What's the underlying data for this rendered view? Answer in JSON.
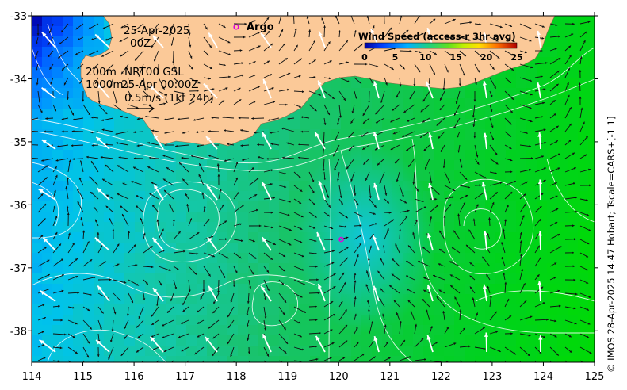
{
  "map": {
    "lon_range": [
      114,
      125
    ],
    "lat_range": [
      -38.5,
      -33
    ],
    "x_ticks": [
      "114",
      "115",
      "116",
      "117",
      "118",
      "119",
      "120",
      "121",
      "122",
      "123",
      "124",
      "125"
    ],
    "y_ticks": [
      "-33",
      "-34",
      "-35",
      "-36",
      "-37",
      "-38"
    ],
    "date_line1": "25-Apr-2025",
    "date_line2": "00Z",
    "depth_line1": "200m",
    "depth_line2": "1000m",
    "product_line1": "NRT00 GSL",
    "product_line2": "25-Apr 00:00Z",
    "scale_label": "0.5m/s (1kt 24h)",
    "argo_label": "Argo",
    "argo_float": {
      "lon": 120.05,
      "lat": -36.55
    },
    "credit": "© IMOS 28-Apr-2025 14:47 Hobart; Tscale=CARS+[-1 1]",
    "colors": {
      "land": "#fbc998",
      "vectors": "#111111",
      "contours": "#ffffff",
      "argo": "#e000e0"
    }
  },
  "colorbar": {
    "title": "Wind Speed (access-r 3hr avg)",
    "ticks": [
      "0",
      "5",
      "10",
      "15",
      "20",
      "25"
    ],
    "range": [
      0,
      25
    ]
  }
}
